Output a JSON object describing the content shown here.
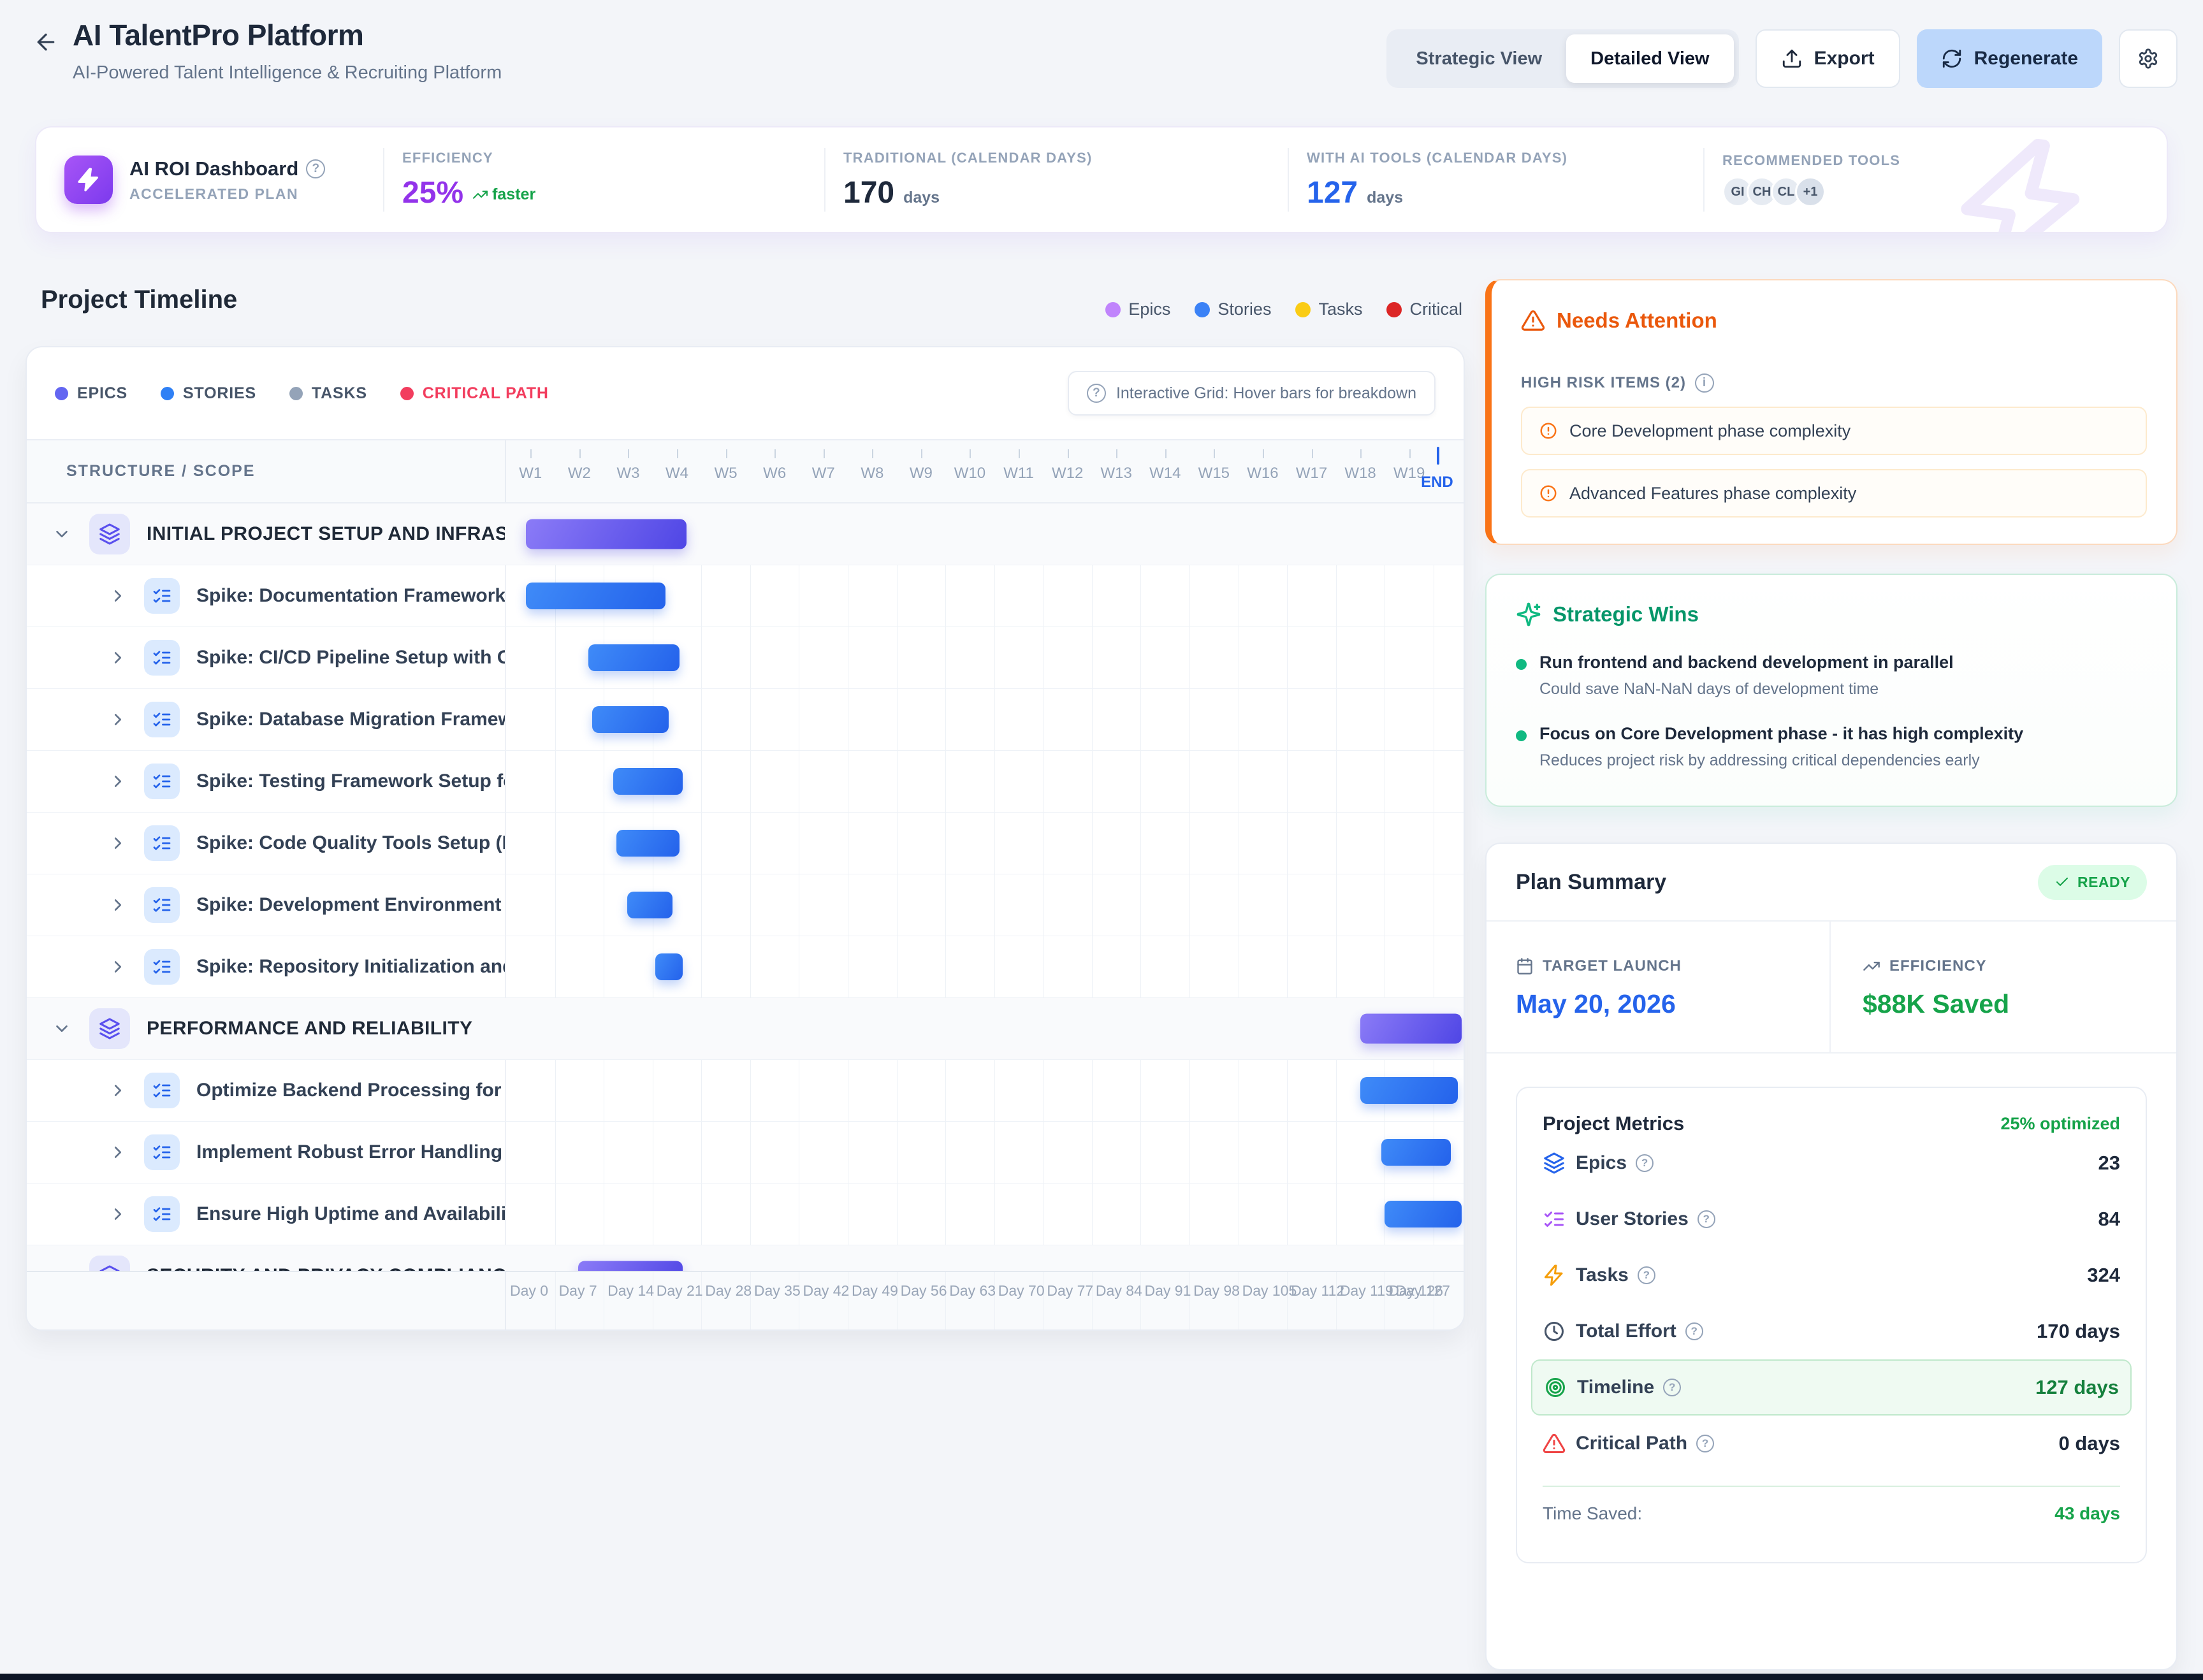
{
  "header": {
    "title": "AI TalentPro Platform",
    "subtitle": "AI-Powered Talent Intelligence & Recruiting Platform",
    "view_strategic": "Strategic View",
    "view_detailed": "Detailed View",
    "export_label": "Export",
    "regenerate_label": "Regenerate"
  },
  "roi": {
    "title": "AI ROI Dashboard",
    "subtitle": "ACCELERATED PLAN",
    "efficiency": {
      "label": "EFFICIENCY",
      "value": "25%",
      "trend": "faster"
    },
    "traditional": {
      "label": "TRADITIONAL (CALENDAR DAYS)",
      "value": "170",
      "unit": "days"
    },
    "with_ai": {
      "label": "WITH AI TOOLS (CALENDAR DAYS)",
      "value": "127",
      "unit": "days"
    },
    "tools": {
      "label": "RECOMMENDED TOOLS",
      "avatars": [
        "GI",
        "CH",
        "CL",
        "+1"
      ]
    }
  },
  "timeline": {
    "title": "Project Timeline",
    "legend": [
      {
        "label": "Epics",
        "color": "#c084fc"
      },
      {
        "label": "Stories",
        "color": "#3b82f6"
      },
      {
        "label": "Tasks",
        "color": "#facc15"
      },
      {
        "label": "Critical",
        "color": "#dc2626"
      }
    ],
    "toolbar_legend": [
      {
        "label": "EPICS",
        "color": "#6366f1"
      },
      {
        "label": "STORIES",
        "color": "#2f80f5"
      },
      {
        "label": "TASKS",
        "color": "#94a3b8"
      },
      {
        "label": "CRITICAL PATH",
        "color": "#f23d5e"
      }
    ],
    "hint": "Interactive Grid: Hover bars for breakdown",
    "structure_header": "STRUCTURE / SCOPE",
    "weeks": [
      "W1",
      "W2",
      "W3",
      "W4",
      "W5",
      "W6",
      "W7",
      "W8",
      "W9",
      "W10",
      "W11",
      "W12",
      "W13",
      "W14",
      "W15",
      "W16",
      "W17",
      "W18",
      "W19"
    ],
    "end_label": "END",
    "total_days": 137.3,
    "week_length": 7,
    "end_tick_day": 133.5,
    "day_labels": [
      {
        "d": 0,
        "label": "Day 0"
      },
      {
        "d": 7,
        "label": "Day 7"
      },
      {
        "d": 14,
        "label": "Day 14"
      },
      {
        "d": 21,
        "label": "Day 21"
      },
      {
        "d": 28,
        "label": "Day 28"
      },
      {
        "d": 35,
        "label": "Day 35"
      },
      {
        "d": 42,
        "label": "Day 42"
      },
      {
        "d": 49,
        "label": "Day 49"
      },
      {
        "d": 56,
        "label": "Day 56"
      },
      {
        "d": 63,
        "label": "Day 63"
      },
      {
        "d": 70,
        "label": "Day 70"
      },
      {
        "d": 77,
        "label": "Day 77"
      },
      {
        "d": 84,
        "label": "Day 84"
      },
      {
        "d": 91,
        "label": "Day 91"
      },
      {
        "d": 98,
        "label": "Day 98"
      },
      {
        "d": 105,
        "label": "Day 105"
      },
      {
        "d": 112,
        "label": "Day 112"
      },
      {
        "d": 119,
        "label": "Day 119"
      },
      {
        "d": 126,
        "label": "Day 126"
      },
      {
        "d": 127,
        "label": "Day 127"
      }
    ],
    "rows": [
      {
        "type": "epic",
        "label": "INITIAL PROJECT SETUP AND INFRASTRUCTURE",
        "bar": {
          "start": 3,
          "end": 26
        }
      },
      {
        "type": "story",
        "label": "Spike: Documentation Framework Setup",
        "bar": {
          "start": 3,
          "end": 23
        }
      },
      {
        "type": "story",
        "label": "Spike: CI/CD Pipeline Setup with GitHub Actio...",
        "bar": {
          "start": 12,
          "end": 25
        }
      },
      {
        "type": "story",
        "label": "Spike: Database Migration Framework Setup",
        "bar": {
          "start": 12.5,
          "end": 23.5
        }
      },
      {
        "type": "story",
        "label": "Spike: Testing Framework Setup for Frontend ...",
        "bar": {
          "start": 15.5,
          "end": 25.5
        }
      },
      {
        "type": "story",
        "label": "Spike: Code Quality Tools Setup (ESLint, Pretti...",
        "bar": {
          "start": 16,
          "end": 25
        }
      },
      {
        "type": "story",
        "label": "Spike: Development Environment Setup with ...",
        "bar": {
          "start": 17.5,
          "end": 24
        }
      },
      {
        "type": "story",
        "label": "Spike: Repository Initialization and Project Sca...",
        "bar": {
          "start": 21.5,
          "end": 25.5
        }
      },
      {
        "type": "epic",
        "label": "PERFORMANCE AND RELIABILITY",
        "bar": {
          "start": 122.5,
          "end": 137
        }
      },
      {
        "type": "story",
        "label": "Optimize Backend Processing for Fast Respon...",
        "bar": {
          "start": 122.5,
          "end": 136.5
        }
      },
      {
        "type": "story",
        "label": "Implement Robust Error Handling and Recover...",
        "bar": {
          "start": 125.5,
          "end": 135.5
        }
      },
      {
        "type": "story",
        "label": "Ensure High Uptime and Availability with Auto...",
        "bar": {
          "start": 126,
          "end": 137
        }
      },
      {
        "type": "epic",
        "label": "SECURITY AND PRIVACY COMPLIANCE",
        "bar": {
          "start": 10.5,
          "end": 25.5
        }
      }
    ]
  },
  "needs_attention": {
    "title": "Needs Attention",
    "risk_header": "HIGH RISK ITEMS (2)",
    "items": [
      "Core Development phase complexity",
      "Advanced Features phase complexity"
    ]
  },
  "strategic_wins": {
    "title": "Strategic Wins",
    "items": [
      {
        "title": "Run frontend and backend development in parallel",
        "subtitle": "Could save NaN-NaN days of development time"
      },
      {
        "title": "Focus on Core Development phase - it has high complexity",
        "subtitle": "Reduces project risk by addressing critical dependencies early"
      }
    ]
  },
  "plan_summary": {
    "title": "Plan Summary",
    "status": "READY",
    "target_launch": {
      "label": "TARGET LAUNCH",
      "value": "May 20, 2026"
    },
    "efficiency": {
      "label": "EFFICIENCY",
      "value": "$88K Saved"
    },
    "metrics": {
      "title": "Project Metrics",
      "optimized": "25% optimized",
      "rows": [
        {
          "label": "Epics",
          "value": "23",
          "icon": "layers",
          "color": "#2563eb",
          "highlight": false
        },
        {
          "label": "User Stories",
          "value": "84",
          "icon": "checklist",
          "color": "#a855f7",
          "highlight": false
        },
        {
          "label": "Tasks",
          "value": "324",
          "icon": "bolt",
          "color": "#f59e0b",
          "highlight": false
        },
        {
          "label": "Total Effort",
          "value": "170 days",
          "icon": "clock",
          "color": "#475569",
          "highlight": false
        },
        {
          "label": "Timeline",
          "value": "127 days",
          "icon": "target",
          "color": "#16a34a",
          "highlight": true
        },
        {
          "label": "Critical Path",
          "value": "0 days",
          "icon": "tri-alert",
          "color": "#ef4444",
          "highlight": false
        }
      ],
      "time_saved_label": "Time Saved:",
      "time_saved_value": "43 days"
    }
  }
}
